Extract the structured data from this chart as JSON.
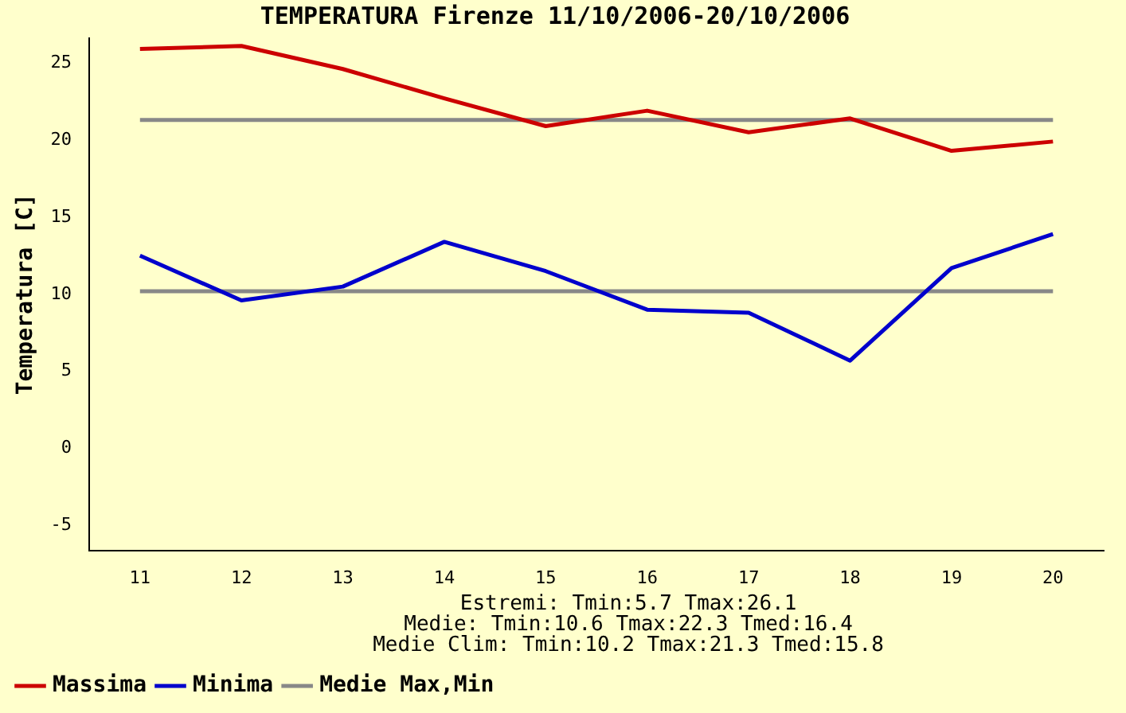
{
  "chart_data": {
    "type": "line",
    "title": "TEMPERATURA Firenze 11/10/2006-20/10/2006",
    "ylabel": "Temperatura [C]",
    "categories": [
      "11",
      "12",
      "13",
      "14",
      "15",
      "16",
      "17",
      "18",
      "19",
      "20"
    ],
    "series": [
      {
        "name": "Massima",
        "color": "#cc0000",
        "values": [
          25.9,
          26.1,
          24.6,
          22.7,
          20.9,
          21.9,
          20.5,
          21.4,
          19.3,
          19.9
        ]
      },
      {
        "name": "Minima",
        "color": "#0000cc",
        "values": [
          12.5,
          9.6,
          10.5,
          13.4,
          11.5,
          9.0,
          8.8,
          5.7,
          11.7,
          13.9
        ]
      },
      {
        "name": "Medie Max,Min",
        "color": "#888888",
        "values": [
          21.3,
          21.3,
          21.3,
          21.3,
          21.3,
          21.3,
          21.3,
          21.3,
          21.3,
          21.3
        ]
      },
      {
        "color": "#888888",
        "values": [
          10.2,
          10.2,
          10.2,
          10.2,
          10.2,
          10.2,
          10.2,
          10.2,
          10.2,
          10.2
        ]
      }
    ],
    "ylim": [
      -6.6,
      26.6
    ],
    "yticks": [
      -5,
      0,
      5,
      10,
      15,
      20,
      25
    ],
    "annotations": [
      "Estremi: Tmin:5.7 Tmax:26.1",
      "Medie: Tmin:10.6 Tmax:22.3 Tmed:16.4",
      "Medie Clim: Tmin:10.2 Tmax:21.3 Tmed:15.8"
    ],
    "legend": "bottom",
    "grid": false,
    "marker": "none",
    "line_style": "solid"
  }
}
